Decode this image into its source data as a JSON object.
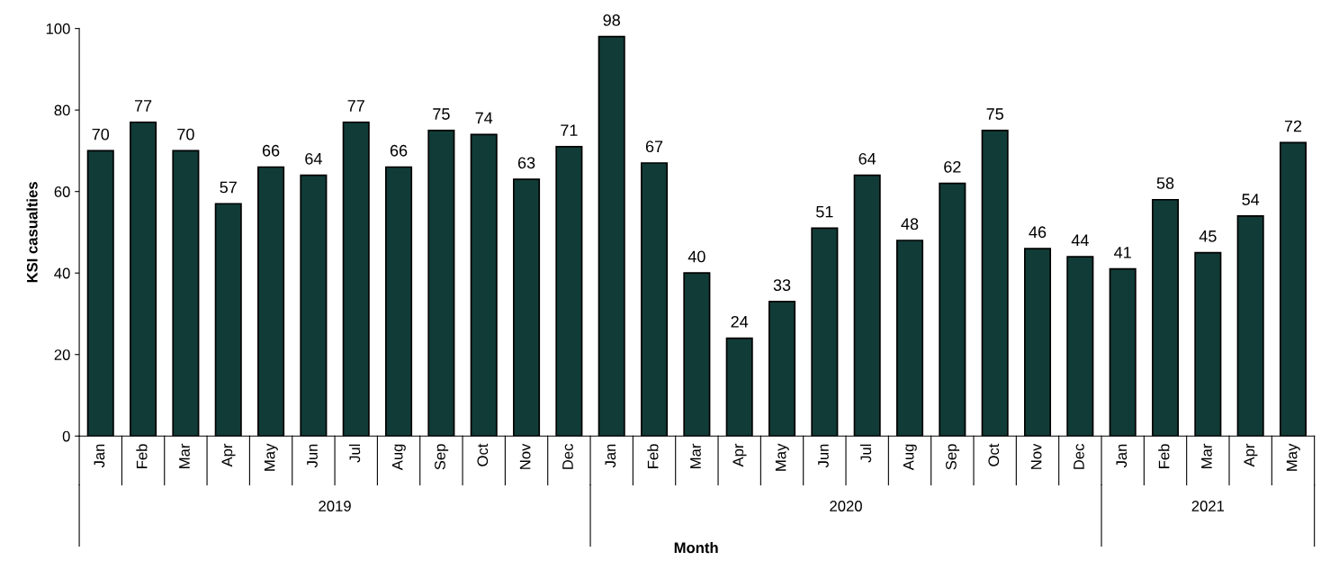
{
  "chart_data": {
    "type": "bar",
    "ylabel": "KSI casualties",
    "xlabel": "Month",
    "categories": [
      "Jan",
      "Feb",
      "Mar",
      "Apr",
      "May",
      "Jun",
      "Jul",
      "Aug",
      "Sep",
      "Oct",
      "Nov",
      "Dec",
      "Jan",
      "Feb",
      "Mar",
      "Apr",
      "May",
      "Jun",
      "Jul",
      "Aug",
      "Sep",
      "Oct",
      "Nov",
      "Dec",
      "Jan",
      "Feb",
      "Mar",
      "Apr",
      "May"
    ],
    "values": [
      70,
      77,
      70,
      57,
      66,
      64,
      77,
      66,
      75,
      74,
      63,
      71,
      98,
      67,
      40,
      24,
      33,
      51,
      64,
      48,
      62,
      75,
      46,
      44,
      41,
      58,
      45,
      54,
      72
    ],
    "color": "#113b37",
    "ylim": [
      0,
      100
    ],
    "yticks": [
      0,
      20,
      40,
      60,
      80,
      100
    ],
    "data_labels": true,
    "grid": false,
    "legend": false,
    "annotations": [
      "2019",
      "2020",
      "2021"
    ]
  }
}
